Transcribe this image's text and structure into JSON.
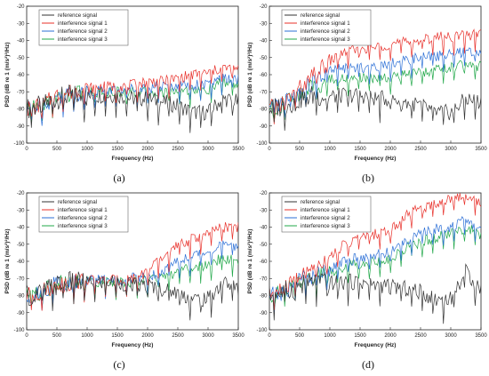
{
  "chart_data": [
    {
      "type": "line",
      "caption": "(a)",
      "xlabel": "Frequency (Hz)",
      "ylabel": "PSD (dB re 1 (m/s²)²/Hz)",
      "xlim": [
        0,
        3500
      ],
      "ylim": [
        -100,
        -20
      ],
      "xticks": [
        0,
        500,
        1000,
        1500,
        2000,
        2500,
        3000,
        3500
      ],
      "yticks": [
        -100,
        -90,
        -80,
        -70,
        -60,
        -50,
        -40,
        -30,
        -20
      ],
      "legend_position": "top-left",
      "x": [
        0,
        250,
        500,
        750,
        1000,
        1250,
        1500,
        1750,
        2000,
        2250,
        2500,
        2750,
        3000,
        3250,
        3500
      ],
      "series": [
        {
          "name": "reference signal",
          "color": "#333333",
          "values": [
            -80,
            -78,
            -74,
            -72,
            -73,
            -72,
            -72,
            -74,
            -74,
            -76,
            -78,
            -82,
            -82,
            -74,
            -76
          ]
        },
        {
          "name": "interference signal 1",
          "color": "#e8302a",
          "values": [
            -80,
            -78,
            -72,
            -70,
            -68,
            -67,
            -67,
            -66,
            -64,
            -64,
            -62,
            -60,
            -59,
            -56,
            -57
          ]
        },
        {
          "name": "interference signal 2",
          "color": "#2b6fd6",
          "values": [
            -80,
            -78,
            -73,
            -71,
            -70,
            -69,
            -69,
            -68,
            -68,
            -67,
            -66,
            -66,
            -66,
            -62,
            -63
          ]
        },
        {
          "name": "interference signal 3",
          "color": "#22a84a",
          "values": [
            -80,
            -78,
            -73,
            -71,
            -70,
            -70,
            -70,
            -70,
            -70,
            -70,
            -69,
            -69,
            -69,
            -64,
            -66
          ]
        }
      ]
    },
    {
      "type": "line",
      "caption": "(b)",
      "xlabel": "Frequency (Hz)",
      "ylabel": "PSD (dB re 1 (m/s²)²/Hz)",
      "xlim": [
        0,
        3500
      ],
      "ylim": [
        -100,
        -20
      ],
      "xticks": [
        0,
        500,
        1000,
        1500,
        2000,
        2500,
        3000,
        3500
      ],
      "yticks": [
        -100,
        -90,
        -80,
        -70,
        -60,
        -50,
        -40,
        -30,
        -20
      ],
      "legend_position": "top-left",
      "x": [
        0,
        250,
        500,
        750,
        1000,
        1250,
        1500,
        1750,
        2000,
        2250,
        2500,
        2750,
        3000,
        3250,
        3500
      ],
      "series": [
        {
          "name": "reference signal",
          "color": "#333333",
          "values": [
            -80,
            -78,
            -74,
            -72,
            -73,
            -72,
            -72,
            -74,
            -74,
            -76,
            -78,
            -82,
            -82,
            -74,
            -76
          ]
        },
        {
          "name": "interference signal 1",
          "color": "#e8302a",
          "values": [
            -80,
            -76,
            -68,
            -60,
            -52,
            -47,
            -45,
            -44,
            -42,
            -41,
            -40,
            -38,
            -38,
            -37,
            -36
          ]
        },
        {
          "name": "interference signal 2",
          "color": "#2b6fd6",
          "values": [
            -80,
            -77,
            -70,
            -64,
            -58,
            -56,
            -56,
            -55,
            -53,
            -52,
            -50,
            -49,
            -48,
            -47,
            -47
          ]
        },
        {
          "name": "interference signal 3",
          "color": "#22a84a",
          "values": [
            -80,
            -77,
            -71,
            -67,
            -63,
            -62,
            -62,
            -62,
            -61,
            -60,
            -59,
            -57,
            -56,
            -54,
            -55
          ]
        }
      ]
    },
    {
      "type": "line",
      "caption": "(c)",
      "xlabel": "Frequency (Hz)",
      "ylabel": "PSD (dB re 1 (m/s²)²/Hz)",
      "xlim": [
        0,
        3500
      ],
      "ylim": [
        -100,
        -20
      ],
      "xticks": [
        0,
        500,
        1000,
        1500,
        2000,
        2500,
        3000,
        3500
      ],
      "yticks": [
        -100,
        -90,
        -80,
        -70,
        -60,
        -50,
        -40,
        -30,
        -20
      ],
      "legend_position": "top-left",
      "x": [
        0,
        250,
        500,
        750,
        1000,
        1250,
        1500,
        1750,
        2000,
        2250,
        2500,
        2750,
        3000,
        3250,
        3500
      ],
      "series": [
        {
          "name": "reference signal",
          "color": "#333333",
          "values": [
            -80,
            -78,
            -74,
            -72,
            -73,
            -72,
            -72,
            -74,
            -74,
            -76,
            -78,
            -82,
            -82,
            -72,
            -76
          ]
        },
        {
          "name": "interference signal 1",
          "color": "#e8302a",
          "values": [
            -80,
            -78,
            -73,
            -72,
            -71,
            -71,
            -71,
            -70,
            -66,
            -58,
            -51,
            -47,
            -44,
            -40,
            -40
          ]
        },
        {
          "name": "interference signal 2",
          "color": "#2b6fd6",
          "values": [
            -80,
            -78,
            -73,
            -72,
            -71,
            -71,
            -71,
            -70,
            -69,
            -65,
            -60,
            -57,
            -54,
            -50,
            -52
          ]
        },
        {
          "name": "interference signal 3",
          "color": "#22a84a",
          "values": [
            -80,
            -78,
            -73,
            -72,
            -72,
            -72,
            -72,
            -72,
            -71,
            -69,
            -66,
            -64,
            -62,
            -58,
            -60
          ]
        }
      ]
    },
    {
      "type": "line",
      "caption": "(d)",
      "xlabel": "Frequency (Hz)",
      "ylabel": "PSD (dB re 1 (m/s²)²/Hz)",
      "xlim": [
        0,
        3500
      ],
      "ylim": [
        -100,
        -20
      ],
      "xticks": [
        0,
        500,
        1000,
        1500,
        2000,
        2500,
        3000,
        3500
      ],
      "yticks": [
        -100,
        -90,
        -80,
        -70,
        -60,
        -50,
        -40,
        -30,
        -20
      ],
      "legend_position": "top-left",
      "x": [
        0,
        250,
        500,
        750,
        1000,
        1250,
        1500,
        1750,
        2000,
        2250,
        2500,
        2750,
        3000,
        3250,
        3500
      ],
      "series": [
        {
          "name": "reference signal",
          "color": "#333333",
          "values": [
            -80,
            -78,
            -74,
            -72,
            -73,
            -72,
            -72,
            -74,
            -74,
            -76,
            -78,
            -82,
            -82,
            -66,
            -76
          ]
        },
        {
          "name": "interference signal 1",
          "color": "#e8302a",
          "values": [
            -80,
            -76,
            -68,
            -63,
            -57,
            -50,
            -46,
            -44,
            -42,
            -33,
            -29,
            -26,
            -23,
            -21,
            -26
          ]
        },
        {
          "name": "interference signal 2",
          "color": "#2b6fd6",
          "values": [
            -80,
            -78,
            -70,
            -68,
            -64,
            -60,
            -58,
            -56,
            -55,
            -48,
            -44,
            -41,
            -40,
            -36,
            -42
          ]
        },
        {
          "name": "interference signal 3",
          "color": "#22a84a",
          "values": [
            -80,
            -78,
            -71,
            -69,
            -66,
            -63,
            -61,
            -60,
            -59,
            -52,
            -49,
            -46,
            -44,
            -40,
            -45
          ]
        }
      ]
    }
  ]
}
